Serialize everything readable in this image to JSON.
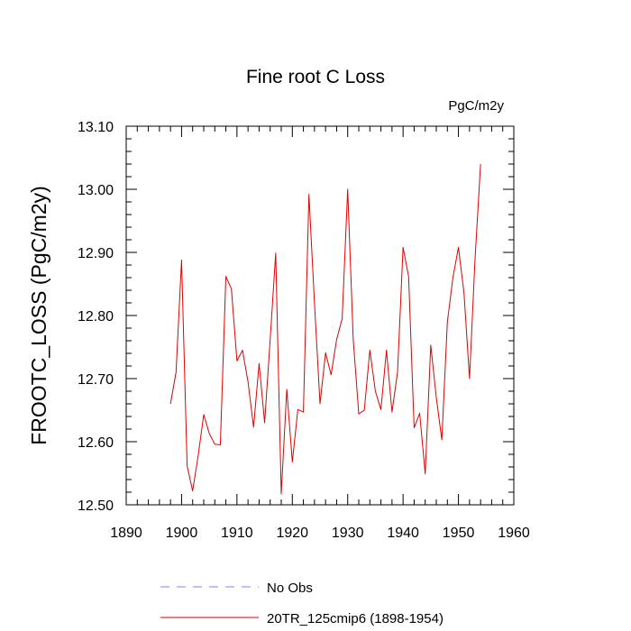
{
  "chart_data": {
    "type": "line",
    "title": "Fine root C Loss",
    "units": "PgC/m2y",
    "xlabel": "",
    "ylabel": "FROOTC_LOSS  (PgC/m2y)",
    "xlim": [
      1890,
      1960
    ],
    "ylim": [
      12.5,
      13.1
    ],
    "xticks": [
      1890,
      1900,
      1910,
      1920,
      1930,
      1940,
      1950,
      1960
    ],
    "yticks": [
      "12.50",
      "12.60",
      "12.70",
      "12.80",
      "12.90",
      "13.00",
      "13.10"
    ],
    "grid": false,
    "legend_position": "bottom",
    "legend": [
      {
        "label": "No Obs",
        "color": "#8080ff",
        "dash": true
      },
      {
        "label": "20TR_125cmip6 (1898-1954)",
        "color": "#e00000",
        "dash": false
      }
    ],
    "series": [
      {
        "color": "#e00000",
        "x": [
          1898,
          1899,
          1900,
          1901,
          1902,
          1903,
          1904,
          1905,
          1906,
          1907,
          1908,
          1909,
          1910,
          1911,
          1912,
          1913,
          1914,
          1915,
          1916,
          1917,
          1918,
          1919,
          1920,
          1921,
          1922,
          1923,
          1924,
          1925,
          1926,
          1927,
          1928,
          1929,
          1930,
          1931,
          1932,
          1933,
          1934,
          1935,
          1936,
          1937,
          1938,
          1939,
          1940,
          1941,
          1942,
          1943,
          1944,
          1945,
          1946,
          1947,
          1948,
          1949,
          1950,
          1951,
          1952,
          1953,
          1954
        ],
        "values": [
          12.66,
          12.71,
          12.888,
          12.562,
          12.522,
          12.578,
          12.643,
          12.613,
          12.596,
          12.595,
          12.862,
          12.842,
          12.728,
          12.745,
          12.695,
          12.623,
          12.724,
          12.63,
          12.762,
          12.899,
          12.517,
          12.683,
          12.568,
          12.651,
          12.647,
          12.992,
          12.82,
          12.66,
          12.741,
          12.706,
          12.762,
          12.795,
          13.0,
          12.762,
          12.644,
          12.65,
          12.745,
          12.68,
          12.651,
          12.745,
          12.647,
          12.71,
          12.908,
          12.862,
          12.622,
          12.645,
          12.549,
          12.753,
          12.67,
          12.603,
          12.79,
          12.86,
          12.908,
          12.836,
          12.7,
          12.89,
          13.04
        ]
      }
    ]
  }
}
